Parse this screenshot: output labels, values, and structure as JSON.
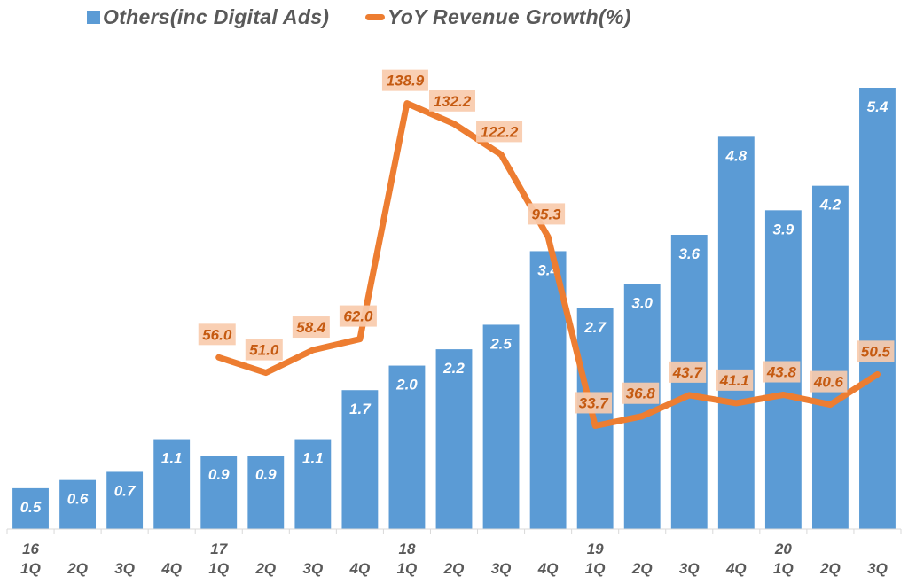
{
  "chart_data": {
    "type": "bar",
    "title": "",
    "xlabel": "",
    "ylabel": "",
    "legend_position": "top",
    "grid": false,
    "categories": [
      "1Q",
      "2Q",
      "3Q",
      "4Q",
      "1Q",
      "2Q",
      "3Q",
      "4Q",
      "1Q",
      "2Q",
      "3Q",
      "4Q",
      "1Q",
      "2Q",
      "3Q",
      "4Q",
      "1Q",
      "2Q",
      "3Q"
    ],
    "year_labels": [
      "16",
      "",
      "",
      "",
      "17",
      "",
      "",
      "",
      "18",
      "",
      "",
      "",
      "19",
      "",
      "",
      "",
      "20",
      "",
      ""
    ],
    "series": [
      {
        "name": "Others(inc Digital Ads)",
        "type": "bar",
        "color": "#5b9bd5",
        "values": [
          0.5,
          0.6,
          0.7,
          1.1,
          0.9,
          0.9,
          1.1,
          1.7,
          2.0,
          2.2,
          2.5,
          3.4,
          2.7,
          3.0,
          3.6,
          4.8,
          3.9,
          4.2,
          5.4
        ],
        "labels": [
          "0.5",
          "0.6",
          "0.7",
          "1.1",
          "0.9",
          "0.9",
          "1.1",
          "1.7",
          "2.0",
          "2.2",
          "2.5",
          "3.4",
          "2.7",
          "3.0",
          "3.6",
          "4.8",
          "3.9",
          "4.2",
          "5.4"
        ],
        "ylim": [
          0,
          5.4
        ]
      },
      {
        "name": "YoY Revenue Growth(%)",
        "type": "line",
        "color": "#ed7d31",
        "values": [
          null,
          null,
          null,
          null,
          56.0,
          51.0,
          58.4,
          62.0,
          138.9,
          132.2,
          122.2,
          95.3,
          33.7,
          36.8,
          43.7,
          41.1,
          43.8,
          40.6,
          50.5
        ],
        "labels": [
          "",
          "",
          "",
          "",
          "56.0",
          "51.0",
          "58.4",
          "62.0",
          "138.9",
          "132.2",
          "122.2",
          "95.3",
          "33.7",
          "36.8",
          "43.7",
          "41.1",
          "43.8",
          "40.6",
          "50.5"
        ],
        "ylim": [
          0,
          144
        ]
      }
    ]
  },
  "legend": {
    "bar_label": "Others(inc Digital Ads)",
    "line_label": "YoY Revenue Growth(%)"
  }
}
